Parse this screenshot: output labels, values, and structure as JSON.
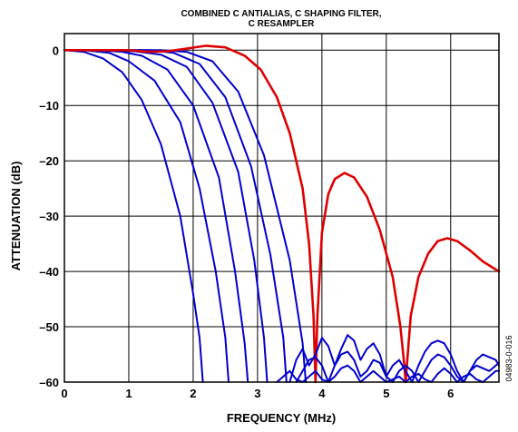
{
  "chart_data": {
    "type": "line",
    "title_line1": "COMBINED C ANTIALIAS, C SHAPING FILTER,",
    "title_line2": "C RESAMPLER",
    "xlabel": "FREQUENCY (MHz)",
    "ylabel": "ATTENUATION (dB)",
    "figure_id": "04983-0-016",
    "xlim": [
      0,
      6.75
    ],
    "ylim": [
      -60,
      3
    ],
    "x_ticks": [
      "0",
      "1",
      "2",
      "3",
      "4",
      "5",
      "6"
    ],
    "x_tick_values": [
      0,
      1,
      2,
      3,
      4,
      5,
      6
    ],
    "y_ticks": [
      "0",
      "–10",
      "–20",
      "–30",
      "–40",
      "–50",
      "–60"
    ],
    "y_tick_values": [
      0,
      -10,
      -20,
      -30,
      -40,
      -50,
      -60
    ],
    "grid": true,
    "colors": {
      "blue": "#0000cc",
      "red": "#dd0000"
    },
    "series": [
      {
        "color": "blue",
        "x": [
          0,
          0.3,
          0.6,
          0.9,
          1.2,
          1.5,
          1.8,
          2.0,
          2.1,
          2.15
        ],
        "y": [
          0,
          -0.3,
          -1.5,
          -4,
          -9,
          -17,
          -30,
          -44,
          -52,
          -60
        ]
      },
      {
        "color": "blue",
        "x": [
          0,
          0.3,
          0.7,
          1.0,
          1.4,
          1.8,
          2.1,
          2.35,
          2.5,
          2.55
        ],
        "y": [
          0,
          0,
          -0.5,
          -2,
          -5.5,
          -13,
          -25,
          -40,
          -52,
          -60
        ]
      },
      {
        "color": "blue",
        "x": [
          0,
          0.5,
          0.9,
          1.2,
          1.6,
          2.0,
          2.4,
          2.65,
          2.8,
          2.85
        ],
        "y": [
          0,
          0,
          -0.3,
          -1,
          -3.5,
          -10,
          -23,
          -40,
          -53,
          -60
        ]
      },
      {
        "color": "blue",
        "x": [
          0,
          0.6,
          1.1,
          1.5,
          1.9,
          2.3,
          2.7,
          2.95,
          3.1,
          3.15
        ],
        "y": [
          0,
          0,
          -0.2,
          -0.8,
          -3,
          -9.5,
          -22,
          -38,
          -52,
          -60
        ]
      },
      {
        "color": "blue",
        "x": [
          0,
          0.8,
          1.3,
          1.7,
          2.1,
          2.5,
          2.9,
          3.2,
          3.4,
          3.45
        ],
        "y": [
          0,
          0,
          0,
          -0.5,
          -2.5,
          -8.5,
          -21,
          -37,
          -52,
          -60
        ]
      },
      {
        "color": "blue",
        "x": [
          0,
          1.0,
          1.5,
          1.9,
          2.3,
          2.7,
          3.1,
          3.5,
          3.7,
          3.75
        ],
        "y": [
          0,
          0,
          0,
          -0.3,
          -2,
          -7.5,
          -19,
          -38,
          -53,
          -60
        ]
      },
      {
        "color": "red",
        "x": [
          0,
          0.5,
          1.0,
          1.3,
          1.6,
          1.9,
          2.2,
          2.5,
          2.8,
          3.05,
          3.3,
          3.5,
          3.7,
          3.8,
          3.87,
          3.9,
          3.93,
          4.0,
          4.1,
          4.2,
          4.35,
          4.5,
          4.7,
          4.9,
          5.1,
          5.22,
          5.28,
          5.3,
          5.32,
          5.38,
          5.5,
          5.65,
          5.8,
          5.95,
          6.1,
          6.3,
          6.5,
          6.75
        ],
        "y": [
          0,
          0,
          0,
          -0.3,
          -0.2,
          0.3,
          0.8,
          0.5,
          -1,
          -3.5,
          -8.5,
          -15,
          -25,
          -35,
          -48,
          -60,
          -48,
          -33,
          -26,
          -23.3,
          -22.2,
          -23,
          -26.5,
          -32.5,
          -41,
          -50,
          -57,
          -60,
          -57,
          -48,
          -41,
          -36.8,
          -34.5,
          -34,
          -34.5,
          -36.2,
          -38.2,
          -40
        ]
      },
      {
        "color": "blue",
        "x": [
          3.5,
          3.6,
          3.7,
          3.8,
          3.9,
          4.0,
          4.1,
          4.2,
          4.3,
          4.4,
          4.5,
          4.6,
          4.7,
          4.8,
          4.9,
          5.0,
          5.1,
          5.2,
          5.3,
          5.4,
          5.5,
          5.6,
          5.7,
          5.8,
          5.9,
          6.0,
          6.1,
          6.2,
          6.3,
          6.4,
          6.5,
          6.6,
          6.7,
          6.75
        ],
        "y": [
          -60,
          -56,
          -54,
          -57,
          -55,
          -52,
          -53.5,
          -57,
          -54,
          -51.5,
          -52.5,
          -56,
          -54,
          -53,
          -55,
          -59,
          -57,
          -56,
          -58,
          -60,
          -57,
          -54.5,
          -53,
          -52.5,
          -53,
          -55,
          -58,
          -60,
          -58,
          -56,
          -55,
          -55.5,
          -56,
          -57
        ]
      },
      {
        "color": "blue",
        "x": [
          3.6,
          3.7,
          3.8,
          3.9,
          4.0,
          4.1,
          4.2,
          4.3,
          4.4,
          4.5,
          4.6,
          4.7,
          4.8,
          4.9,
          5.0,
          5.1,
          5.2,
          5.3,
          5.4,
          5.5,
          5.6,
          5.7,
          5.8,
          5.9,
          6.0,
          6.1,
          6.2,
          6.3,
          6.4,
          6.5,
          6.6,
          6.7,
          6.75
        ],
        "y": [
          -60,
          -58,
          -56,
          -55.5,
          -57,
          -60,
          -57,
          -55,
          -54.5,
          -56,
          -59,
          -58,
          -56,
          -56.5,
          -59,
          -60,
          -58,
          -57,
          -58,
          -60,
          -58,
          -56,
          -55,
          -55.5,
          -57,
          -59,
          -60,
          -58,
          -57,
          -57.5,
          -58,
          -57,
          -56.5
        ]
      },
      {
        "color": "blue",
        "x": [
          3.3,
          3.4,
          3.5,
          3.6,
          3.7,
          3.8,
          3.9,
          4.0,
          4.1,
          4.2,
          4.3,
          4.4,
          4.5,
          4.6,
          4.7,
          4.8,
          4.9,
          5.0,
          5.1,
          5.2,
          5.3,
          5.4,
          5.5,
          5.6,
          5.7,
          5.8,
          5.9,
          6.0,
          6.1,
          6.2,
          6.3,
          6.4,
          6.5,
          6.6,
          6.7,
          6.75
        ],
        "y": [
          -60,
          -59,
          -58,
          -59.5,
          -60,
          -59,
          -58,
          -59.5,
          -60,
          -59,
          -57.5,
          -57,
          -58,
          -60,
          -59,
          -58,
          -59,
          -60,
          -59.5,
          -59,
          -60,
          -59,
          -58.5,
          -59.5,
          -60,
          -58.5,
          -57.5,
          -58.5,
          -60,
          -59,
          -58.5,
          -59.5,
          -60,
          -59,
          -58,
          -58
        ]
      }
    ]
  }
}
